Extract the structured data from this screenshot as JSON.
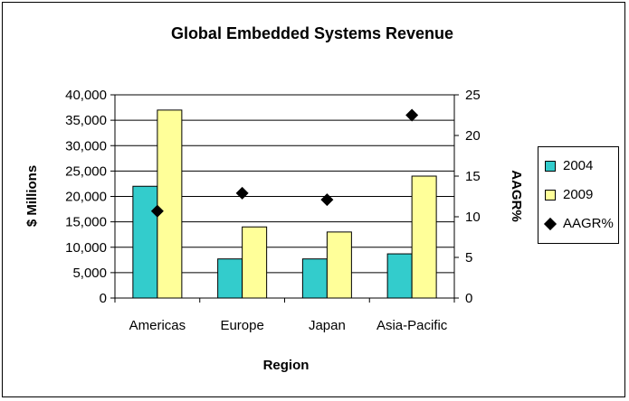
{
  "chart_data": {
    "type": "bar",
    "title": "Global Embedded Systems Revenue",
    "xlabel": "Region",
    "ylabel": "$ Millions",
    "y2label": "AAGR%",
    "categories": [
      "Americas",
      "Europe",
      "Japan",
      "Asia-Pacific"
    ],
    "ylim": [
      0,
      40000
    ],
    "y2lim": [
      0,
      25
    ],
    "yticks": [
      "0",
      "5,000",
      "10,000",
      "15,000",
      "20,000",
      "25,000",
      "30,000",
      "35,000",
      "40,000"
    ],
    "y2ticks": [
      "0",
      "5",
      "10",
      "15",
      "20",
      "25"
    ],
    "series": [
      {
        "name": "2004",
        "type": "bar",
        "axis": "left",
        "color": "#33cccc",
        "values": [
          22000,
          7700,
          7700,
          8700
        ]
      },
      {
        "name": "2009",
        "type": "bar",
        "axis": "left",
        "color": "#ffff99",
        "values": [
          37000,
          14000,
          13000,
          24000
        ]
      },
      {
        "name": "AAGR%",
        "type": "scatter",
        "axis": "right",
        "marker": "diamond",
        "color": "#000000",
        "values": [
          10.7,
          12.9,
          12.1,
          22.5
        ]
      }
    ],
    "legend_position": "right",
    "grid": true
  }
}
